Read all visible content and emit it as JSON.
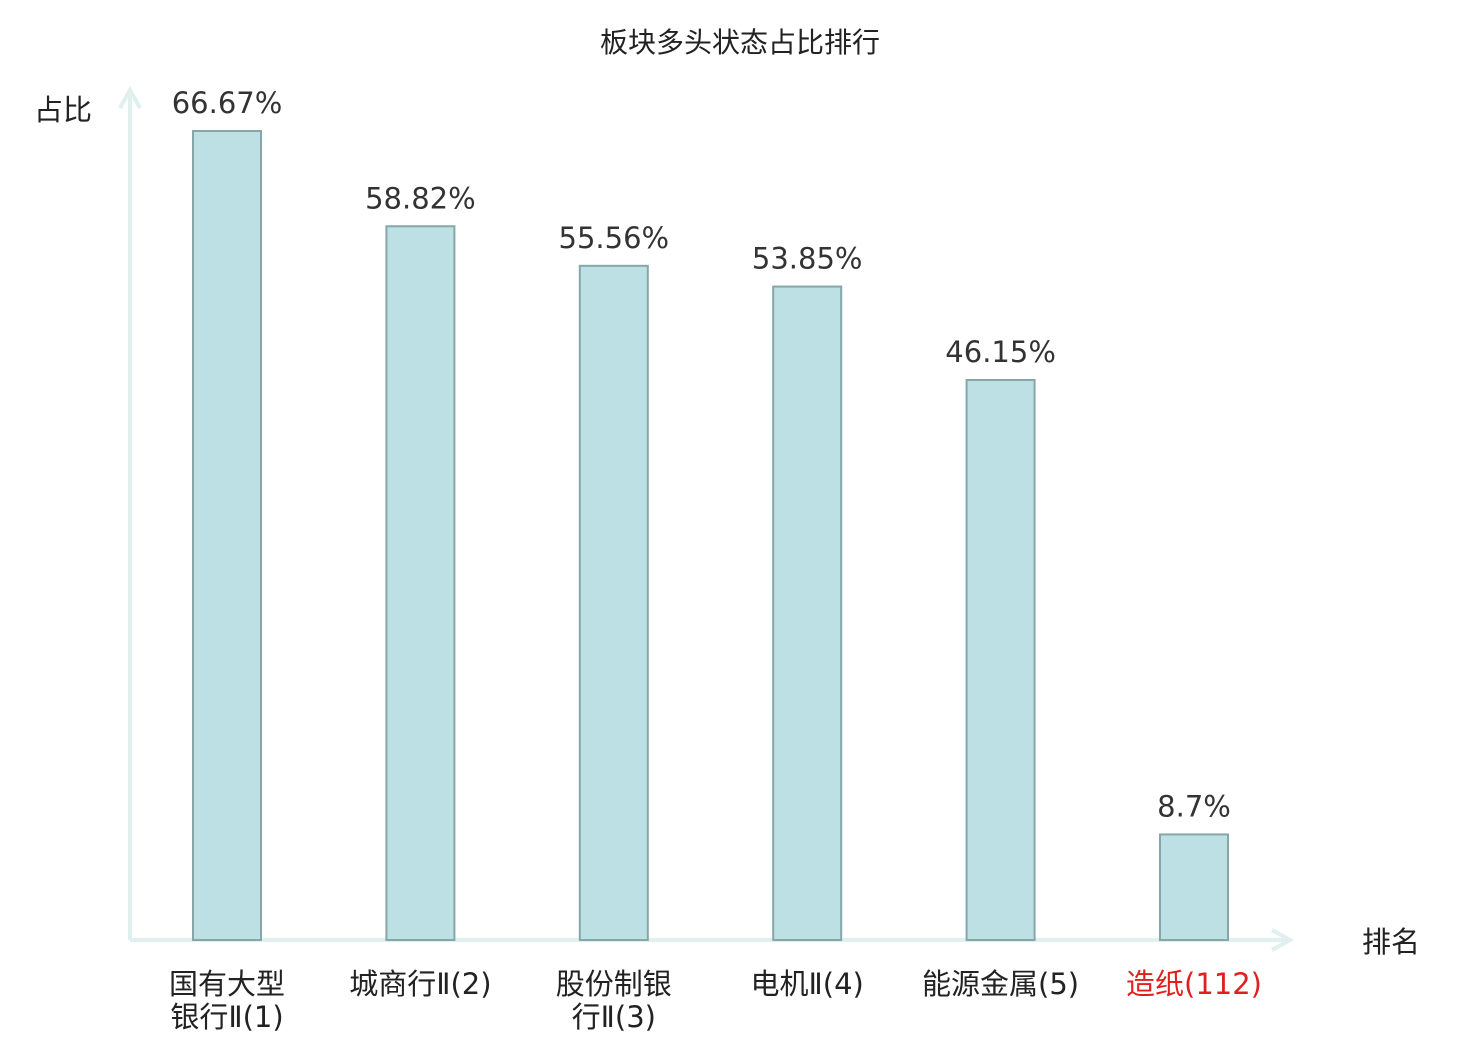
{
  "chart_data": {
    "type": "bar",
    "title": "板块多头状态占比排行",
    "ylabel": "占比",
    "xlabel": "排名",
    "ylim": [
      0,
      70
    ],
    "grid": false,
    "categories": [
      [
        "国有大型",
        "银行Ⅱ(1)"
      ],
      [
        "城商行Ⅱ(2)"
      ],
      [
        "股份制银",
        "行Ⅱ(3)"
      ],
      [
        "电机Ⅱ(4)"
      ],
      [
        "能源金属(5)"
      ],
      [
        "造纸(112)"
      ]
    ],
    "values": [
      66.67,
      58.82,
      55.56,
      53.85,
      46.15,
      8.7
    ],
    "value_labels": [
      "66.67%",
      "58.82%",
      "55.56%",
      "53.85%",
      "46.15%",
      "8.7%"
    ],
    "highlight_index": 5,
    "colors": {
      "bar_fill": "#bce0e3",
      "bar_stroke": "#86a6a8",
      "axis": "#dff0ee",
      "highlight_text": "#e02020",
      "text": "#222222"
    }
  }
}
